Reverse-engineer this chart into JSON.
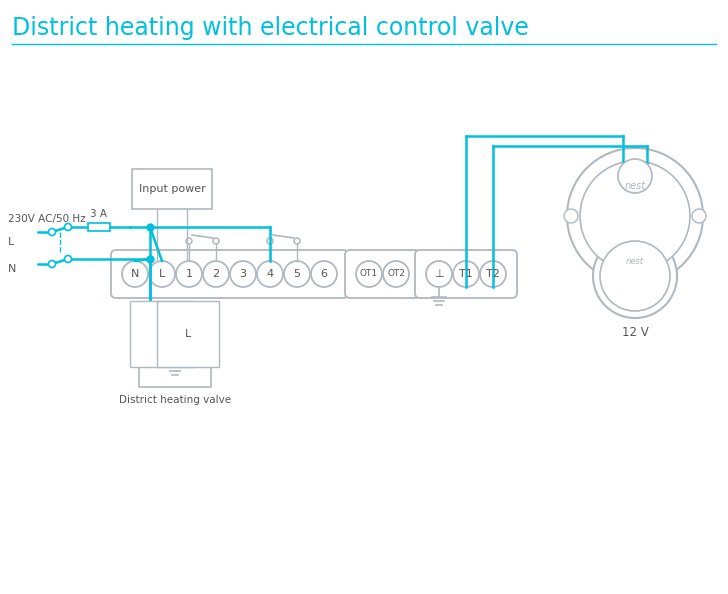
{
  "title": "District heating with electrical control valve",
  "title_color": "#00c0e0",
  "line_color": "#00c0e0",
  "gray_color": "#909090",
  "light_gray": "#b0b8c0",
  "bg_color": "#ffffff",
  "terminal_labels": [
    "N",
    "L",
    "1",
    "2",
    "3",
    "4",
    "5",
    "6",
    "OT1",
    "OT2",
    "⊥",
    "T1",
    "T2"
  ],
  "input_power_label": "Input power",
  "valve_label": "District heating valve",
  "nest_label": "12 V",
  "fuse_label": "3 A",
  "label_230v": "230V AC/50 Hz",
  "label_L": "L",
  "label_N": "N"
}
